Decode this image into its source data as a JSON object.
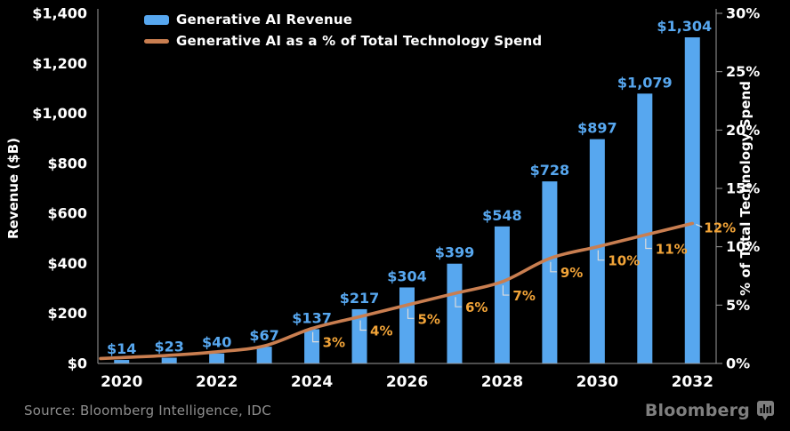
{
  "chart_data": {
    "type": "combo",
    "categories": [
      "2020",
      "2021",
      "2022",
      "2023",
      "2024",
      "2025",
      "2026",
      "2027",
      "2028",
      "2029",
      "2030",
      "2031",
      "2032"
    ],
    "x_tick_labels": [
      "2020",
      "2022",
      "2024",
      "2026",
      "2028",
      "2030",
      "2032"
    ],
    "series": [
      {
        "name": "Generative AI Revenue",
        "type": "bar",
        "axis": "left",
        "color": "#57a7ef",
        "label_color": "#57a7ef",
        "values": [
          14,
          23,
          40,
          67,
          137,
          217,
          304,
          399,
          548,
          728,
          897,
          1079,
          1304
        ],
        "data_labels": [
          "$14",
          "$23",
          "$40",
          "$67",
          "$137",
          "$217",
          "$304",
          "$399",
          "$548",
          "$728",
          "$897",
          "$1,079",
          "$1,304"
        ]
      },
      {
        "name": "Generative AI as a % of Total Technology Spend",
        "type": "line",
        "axis": "right",
        "color": "#c97e50",
        "label_color": "#f2a438",
        "values": [
          0.5,
          0.7,
          1.0,
          1.5,
          3,
          4,
          5,
          6,
          7,
          9,
          10,
          11,
          12
        ],
        "data_labels": [
          null,
          null,
          null,
          null,
          "3%",
          "4%",
          "5%",
          "6%",
          "7%",
          "9%",
          "10%",
          "11%",
          "12%"
        ]
      }
    ],
    "left_axis": {
      "title": "Revenue ($B)",
      "min": 0,
      "max": 1400,
      "tick_step": 200,
      "tick_labels": [
        "$0",
        "$200",
        "$400",
        "$600",
        "$800",
        "$1,000",
        "$1,200",
        "$1,400"
      ]
    },
    "right_axis": {
      "title": "% of Total Technology Spend",
      "min": 0,
      "max": 30,
      "tick_step": 5,
      "tick_labels": [
        "0%",
        "5%",
        "10%",
        "15%",
        "20%",
        "25%",
        "30%"
      ]
    },
    "legend": [
      {
        "label": "Generative AI Revenue",
        "swatch": "bar",
        "color": "#57a7ef"
      },
      {
        "label": "Generative AI as a % of Total Technology Spend",
        "swatch": "line",
        "color": "#c97e50"
      }
    ],
    "grid": false,
    "legend_position": "top-left"
  },
  "footer": {
    "source": "Source: Bloomberg Intelligence, IDC",
    "brand": "Bloomberg"
  },
  "colors": {
    "background": "#000000",
    "axis_text": "#ffffff",
    "spine": "#9c9c9c",
    "leader": "#dcdcdc",
    "source_text": "#8f8f8f",
    "brand": "#7f7f7f"
  }
}
